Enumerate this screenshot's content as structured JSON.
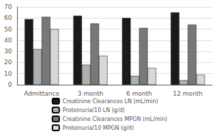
{
  "chart_data": {
    "type": "bar",
    "categories": [
      "Admittance",
      "3 month",
      "6 month",
      "12 month"
    ],
    "series": [
      {
        "name": "Creatinine Clearances LN (mL/min)",
        "color": "#1a1a1a",
        "values": [
          59,
          62,
          60,
          65
        ]
      },
      {
        "name": "Proteinuria/10 LN (g/d)",
        "color": "#b0b0b0",
        "values": [
          32,
          18,
          8,
          4
        ]
      },
      {
        "name": "Creatinine Clearances MPGN (mL/min)",
        "color": "#787878",
        "values": [
          61,
          55,
          51,
          54
        ]
      },
      {
        "name": "Proteinuria/10 MPGN (g/d)",
        "color": "#d8d8d8",
        "values": [
          50,
          26,
          15,
          9
        ]
      }
    ],
    "ylim": [
      0,
      70
    ],
    "yticks": [
      0,
      10,
      20,
      30,
      40,
      50,
      60,
      70
    ],
    "grid": true,
    "legend": "bottom"
  }
}
